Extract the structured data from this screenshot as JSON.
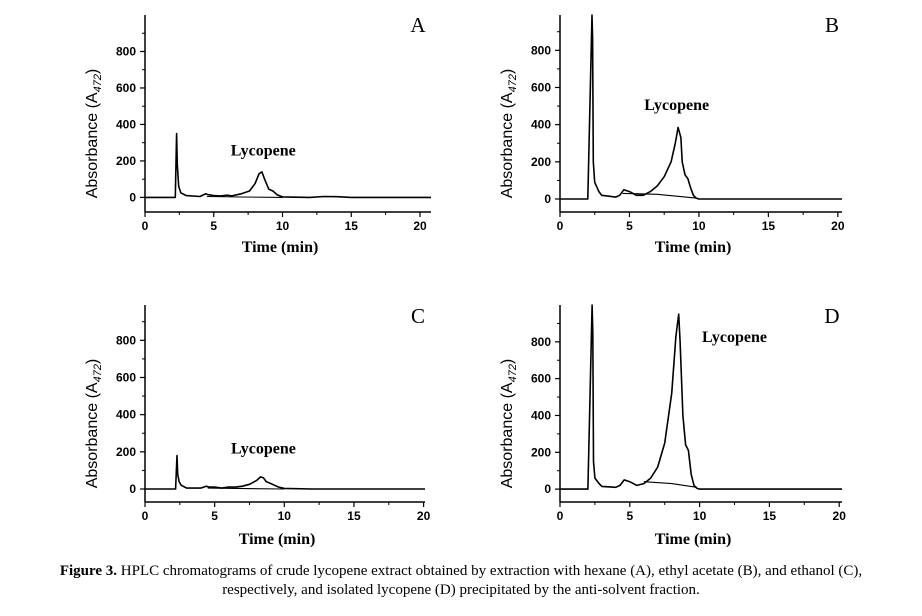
{
  "figure": {
    "caption_bold": "Figure 3.",
    "caption_line1": " HPLC chromatograms of crude lycopene extract obtained by extraction with hexane (A), ethyl acetate (B), and ethanol (C),",
    "caption_line2": "respectively, and isolated lycopene (D) precipitated by the anti-solvent fraction."
  },
  "chart_data": [
    {
      "type": "line",
      "panel": "A",
      "xlabel": "Time (min)",
      "ylabel": "Absorbance (A472)",
      "ylabel_main": "Absorbance (A",
      "ylabel_sub": "472",
      "ylabel_close": ")",
      "x_ticks": [
        0,
        5,
        10,
        15,
        20
      ],
      "y_ticks": [
        0,
        200,
        400,
        600,
        800
      ],
      "xlim": [
        0,
        20.8
      ],
      "ylim": [
        -80,
        1000
      ],
      "annotation": {
        "text": "Lycopene",
        "x": 8.6,
        "y": 230
      },
      "series": [
        {
          "name": "chromatogram",
          "points": [
            [
              0,
              0
            ],
            [
              2.0,
              0
            ],
            [
              2.2,
              0
            ],
            [
              2.3,
              350
            ],
            [
              2.35,
              180
            ],
            [
              2.45,
              60
            ],
            [
              2.6,
              25
            ],
            [
              3.0,
              10
            ],
            [
              4.0,
              5
            ],
            [
              4.4,
              20
            ],
            [
              4.6,
              15
            ],
            [
              5.0,
              10
            ],
            [
              5.5,
              8
            ],
            [
              6.0,
              12
            ],
            [
              6.3,
              8
            ],
            [
              7.0,
              20
            ],
            [
              7.6,
              35
            ],
            [
              8.0,
              75
            ],
            [
              8.3,
              130
            ],
            [
              8.5,
              140
            ],
            [
              8.7,
              100
            ],
            [
              9.0,
              45
            ],
            [
              9.3,
              35
            ],
            [
              9.6,
              15
            ],
            [
              10.0,
              3
            ],
            [
              12.0,
              0
            ],
            [
              13.0,
              5
            ],
            [
              14.0,
              4
            ],
            [
              15.0,
              0
            ],
            [
              20.8,
              0
            ]
          ]
        },
        {
          "name": "baseline",
          "points": [
            [
              4.5,
              5
            ],
            [
              7.0,
              2
            ],
            [
              10.0,
              0
            ]
          ]
        }
      ]
    },
    {
      "type": "line",
      "panel": "B",
      "xlabel": "Time (min)",
      "ylabel": "Absorbance (A472)",
      "ylabel_main": "Absorbance (A",
      "ylabel_sub": "472",
      "ylabel_close": ")",
      "x_ticks": [
        0,
        5,
        10,
        15,
        20
      ],
      "y_ticks": [
        0,
        200,
        400,
        600,
        800
      ],
      "xlim": [
        0,
        20.3
      ],
      "ylim": [
        -70,
        990
      ],
      "annotation": {
        "text": "Lycopene",
        "x": 8.4,
        "y": 480
      },
      "series": [
        {
          "name": "chromatogram",
          "points": [
            [
              0,
              0
            ],
            [
              2.0,
              0
            ],
            [
              2.3,
              990
            ],
            [
              2.35,
              860
            ],
            [
              2.4,
              200
            ],
            [
              2.5,
              90
            ],
            [
              2.8,
              40
            ],
            [
              3.0,
              20
            ],
            [
              4.0,
              10
            ],
            [
              4.3,
              20
            ],
            [
              4.6,
              50
            ],
            [
              5.0,
              40
            ],
            [
              5.5,
              20
            ],
            [
              6.0,
              20
            ],
            [
              6.5,
              40
            ],
            [
              7.0,
              70
            ],
            [
              7.5,
              120
            ],
            [
              8.0,
              200
            ],
            [
              8.3,
              300
            ],
            [
              8.5,
              385
            ],
            [
              8.7,
              330
            ],
            [
              8.8,
              200
            ],
            [
              9.0,
              130
            ],
            [
              9.2,
              110
            ],
            [
              9.4,
              60
            ],
            [
              9.6,
              20
            ],
            [
              9.8,
              5
            ],
            [
              10.0,
              0
            ],
            [
              20.3,
              0
            ]
          ]
        },
        {
          "name": "baseline",
          "points": [
            [
              4.5,
              30
            ],
            [
              7.0,
              25
            ],
            [
              9.8,
              5
            ]
          ]
        }
      ]
    },
    {
      "type": "line",
      "panel": "C",
      "xlabel": "Time (min)",
      "ylabel": "Absorbance (A472)",
      "ylabel_main": "Absorbance (A",
      "ylabel_sub": "472",
      "ylabel_close": ")",
      "x_ticks": [
        0,
        5,
        10,
        15,
        20
      ],
      "y_ticks": [
        0,
        200,
        400,
        600,
        800
      ],
      "xlim": [
        0,
        20.1
      ],
      "ylim": [
        -70,
        990
      ],
      "annotation": {
        "text": "Lycopene",
        "x": 8.5,
        "y": 190
      },
      "series": [
        {
          "name": "chromatogram",
          "points": [
            [
              0,
              0
            ],
            [
              2.0,
              0
            ],
            [
              2.2,
              0
            ],
            [
              2.3,
              180
            ],
            [
              2.35,
              80
            ],
            [
              2.45,
              40
            ],
            [
              2.6,
              20
            ],
            [
              3.0,
              5
            ],
            [
              4.0,
              5
            ],
            [
              4.4,
              15
            ],
            [
              4.6,
              10
            ],
            [
              5.0,
              10
            ],
            [
              5.5,
              5
            ],
            [
              6.0,
              10
            ],
            [
              6.5,
              10
            ],
            [
              7.0,
              15
            ],
            [
              7.5,
              25
            ],
            [
              8.0,
              45
            ],
            [
              8.3,
              65
            ],
            [
              8.5,
              60
            ],
            [
              8.7,
              40
            ],
            [
              9.0,
              30
            ],
            [
              9.3,
              20
            ],
            [
              9.6,
              10
            ],
            [
              10.0,
              3
            ],
            [
              12.0,
              0
            ],
            [
              20.1,
              0
            ]
          ]
        },
        {
          "name": "baseline",
          "points": [
            [
              4.5,
              5
            ],
            [
              10.0,
              0
            ]
          ]
        }
      ]
    },
    {
      "type": "line",
      "panel": "D",
      "xlabel": "Time (min)",
      "ylabel": "Absorbance (A472)",
      "ylabel_main": "Absorbance (A",
      "ylabel_sub": "472",
      "ylabel_close": ")",
      "x_ticks": [
        0,
        5,
        10,
        15,
        20
      ],
      "y_ticks": [
        0,
        200,
        400,
        600,
        800
      ],
      "xlim": [
        0,
        20.2
      ],
      "ylim": [
        -70,
        1000
      ],
      "annotation": {
        "text": "Lycopene",
        "x": 12.5,
        "y": 800
      },
      "series": [
        {
          "name": "chromatogram",
          "points": [
            [
              0,
              0
            ],
            [
              2.0,
              0
            ],
            [
              2.3,
              1000
            ],
            [
              2.35,
              850
            ],
            [
              2.4,
              150
            ],
            [
              2.5,
              60
            ],
            [
              2.8,
              30
            ],
            [
              3.0,
              15
            ],
            [
              4.0,
              10
            ],
            [
              4.3,
              20
            ],
            [
              4.6,
              50
            ],
            [
              5.0,
              40
            ],
            [
              5.5,
              20
            ],
            [
              6.0,
              30
            ],
            [
              6.5,
              60
            ],
            [
              7.0,
              120
            ],
            [
              7.5,
              250
            ],
            [
              8.0,
              520
            ],
            [
              8.3,
              830
            ],
            [
              8.5,
              950
            ],
            [
              8.6,
              800
            ],
            [
              8.8,
              400
            ],
            [
              9.0,
              240
            ],
            [
              9.2,
              210
            ],
            [
              9.4,
              80
            ],
            [
              9.6,
              20
            ],
            [
              9.8,
              5
            ],
            [
              10.0,
              0
            ],
            [
              20.2,
              0
            ]
          ]
        },
        {
          "name": "baseline",
          "points": [
            [
              6.0,
              40
            ],
            [
              8.0,
              30
            ],
            [
              9.8,
              10
            ]
          ]
        }
      ]
    }
  ]
}
